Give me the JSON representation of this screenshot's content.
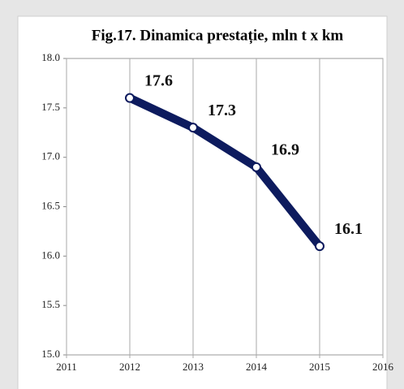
{
  "chart_data": {
    "type": "line",
    "title": "Fig.17.  Dinamica prestație, mln t x km",
    "x": [
      2012,
      2013,
      2014,
      2015
    ],
    "series": [
      {
        "name": "prestație",
        "color": "#0d1b5e",
        "values": [
          17.6,
          17.3,
          16.9,
          16.1
        ]
      }
    ],
    "xlim": [
      2011,
      2016
    ],
    "xticks": [
      2011,
      2012,
      2013,
      2014,
      2015,
      2016
    ],
    "ylim": [
      15,
      18
    ],
    "yticks": [
      {
        "value": 15,
        "label": "15.0"
      },
      15.5,
      {
        "value": 16,
        "label": "16.0"
      },
      16.5,
      {
        "value": 17,
        "label": "17.0"
      },
      17.5,
      {
        "value": 18,
        "label": "18.0"
      }
    ],
    "grid": true
  }
}
